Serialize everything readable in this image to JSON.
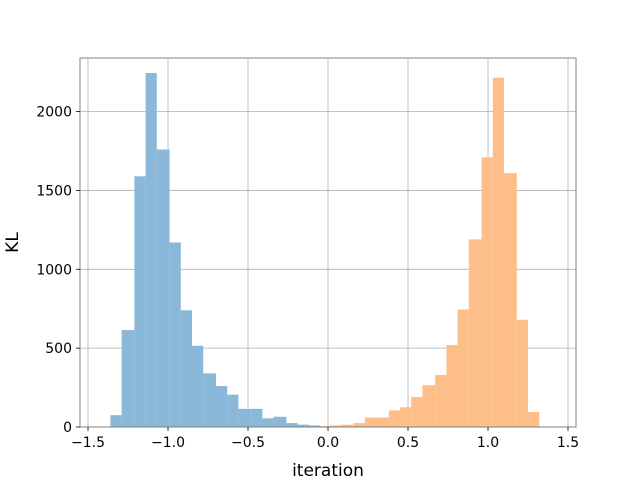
{
  "chart_data": {
    "type": "histogram",
    "title": "",
    "xlabel": "iteration",
    "ylabel": "KL",
    "xlim": [
      -1.55,
      1.55
    ],
    "ylim": [
      0,
      2340
    ],
    "grid": true,
    "legend": "none",
    "xticks": [
      -1.5,
      -1.0,
      -0.5,
      0.0,
      0.5,
      1.0,
      1.5
    ],
    "xtick_labels": [
      "−1.5",
      "−1.0",
      "−0.5",
      "0.0",
      "0.5",
      "1.0",
      "1.5"
    ],
    "yticks": [
      0,
      500,
      1000,
      1500,
      2000
    ],
    "ytick_labels": [
      "0",
      "500",
      "1000",
      "1500",
      "2000"
    ],
    "series": [
      {
        "color": "#8ab8d9",
        "bins": [
          {
            "x0": -1.36,
            "x1": -1.29,
            "value": 75
          },
          {
            "x0": -1.29,
            "x1": -1.21,
            "value": 615
          },
          {
            "x0": -1.21,
            "x1": -1.14,
            "value": 1590
          },
          {
            "x0": -1.14,
            "x1": -1.07,
            "value": 2245
          },
          {
            "x0": -1.07,
            "x1": -0.99,
            "value": 1760
          },
          {
            "x0": -0.99,
            "x1": -0.92,
            "value": 1170
          },
          {
            "x0": -0.92,
            "x1": -0.85,
            "value": 740
          },
          {
            "x0": -0.85,
            "x1": -0.78,
            "value": 515
          },
          {
            "x0": -0.78,
            "x1": -0.7,
            "value": 340
          },
          {
            "x0": -0.7,
            "x1": -0.63,
            "value": 260
          },
          {
            "x0": -0.63,
            "x1": -0.56,
            "value": 205
          },
          {
            "x0": -0.56,
            "x1": -0.48,
            "value": 115
          },
          {
            "x0": -0.48,
            "x1": -0.41,
            "value": 115
          },
          {
            "x0": -0.41,
            "x1": -0.34,
            "value": 55
          },
          {
            "x0": -0.34,
            "x1": -0.26,
            "value": 65
          },
          {
            "x0": -0.26,
            "x1": -0.19,
            "value": 25
          },
          {
            "x0": -0.19,
            "x1": -0.12,
            "value": 15
          },
          {
            "x0": -0.12,
            "x1": -0.05,
            "value": 10
          },
          {
            "x0": -0.05,
            "x1": 0.03,
            "value": 5
          }
        ]
      },
      {
        "color": "#fdbe87",
        "bins": [
          {
            "x0": -0.06,
            "x1": 0.01,
            "value": 5
          },
          {
            "x0": 0.01,
            "x1": 0.08,
            "value": 10
          },
          {
            "x0": 0.08,
            "x1": 0.16,
            "value": 15
          },
          {
            "x0": 0.16,
            "x1": 0.23,
            "value": 25
          },
          {
            "x0": 0.23,
            "x1": 0.3,
            "value": 60
          },
          {
            "x0": 0.3,
            "x1": 0.38,
            "value": 60
          },
          {
            "x0": 0.38,
            "x1": 0.45,
            "value": 105
          },
          {
            "x0": 0.45,
            "x1": 0.52,
            "value": 125
          },
          {
            "x0": 0.52,
            "x1": 0.59,
            "value": 190
          },
          {
            "x0": 0.59,
            "x1": 0.67,
            "value": 265
          },
          {
            "x0": 0.67,
            "x1": 0.74,
            "value": 330
          },
          {
            "x0": 0.74,
            "x1": 0.81,
            "value": 520
          },
          {
            "x0": 0.81,
            "x1": 0.88,
            "value": 745
          },
          {
            "x0": 0.88,
            "x1": 0.96,
            "value": 1190
          },
          {
            "x0": 0.96,
            "x1": 1.03,
            "value": 1710
          },
          {
            "x0": 1.03,
            "x1": 1.1,
            "value": 2215
          },
          {
            "x0": 1.1,
            "x1": 1.18,
            "value": 1610
          },
          {
            "x0": 1.18,
            "x1": 1.25,
            "value": 680
          },
          {
            "x0": 1.25,
            "x1": 1.32,
            "value": 95
          }
        ]
      }
    ]
  }
}
